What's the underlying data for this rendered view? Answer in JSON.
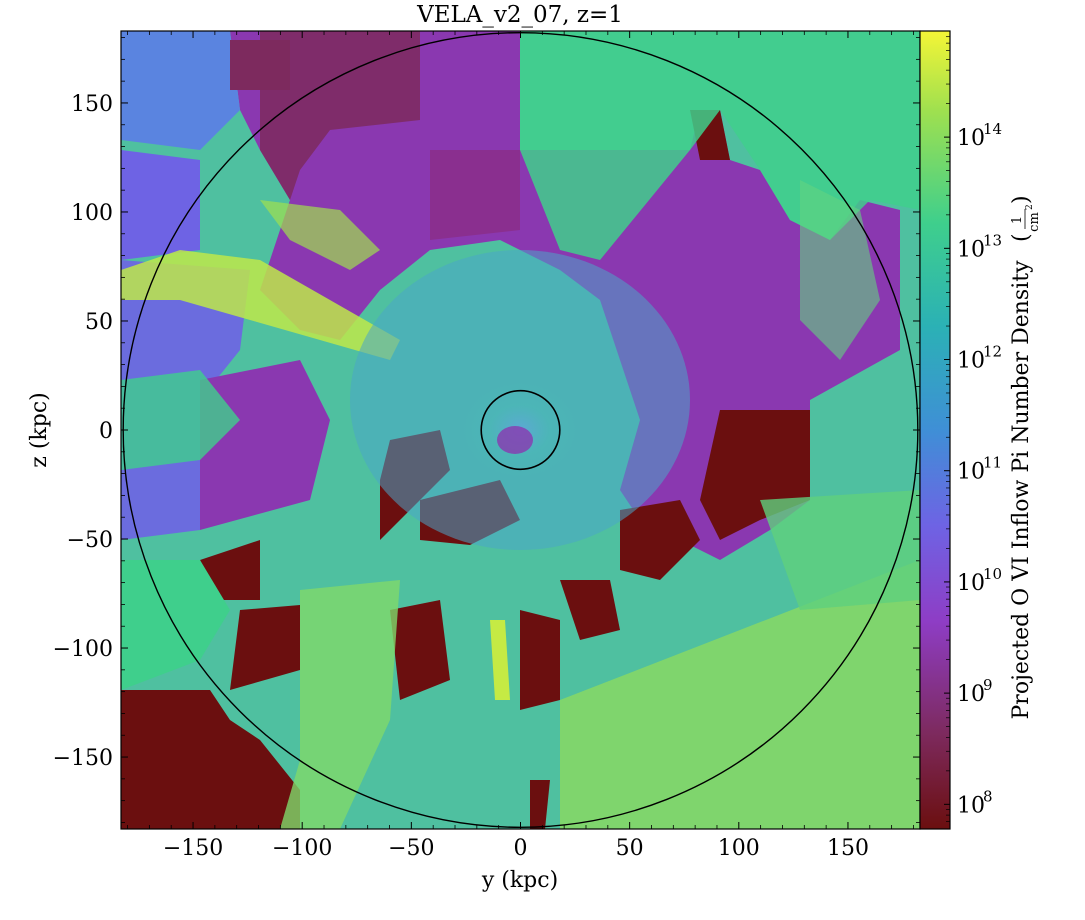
{
  "chart_data": {
    "type": "heatmap",
    "title": "VELA_v2_07, z=1",
    "xlabel": "y  (kpc)",
    "ylabel": "z  (kpc)",
    "xlim": [
      -183,
      183
    ],
    "ylim": [
      -183,
      183
    ],
    "xticks": [
      -150,
      -100,
      -50,
      0,
      50,
      100,
      150
    ],
    "yticks": [
      -150,
      -100,
      -50,
      0,
      50,
      100,
      150
    ],
    "xtick_labels": [
      "−150",
      "−100",
      "−50",
      "0",
      "50",
      "100",
      "150"
    ],
    "ytick_labels": [
      "−150",
      "−100",
      "−50",
      "0",
      "50",
      "100",
      "150"
    ],
    "colorbar": {
      "label": "Projected O VI Inflow Pi Number Density",
      "unit_numerator": "1",
      "unit_denominator": "cm",
      "unit_denominator_exp": "2",
      "scale": "log",
      "range": [
        60000000.0,
        900000000000000.0
      ],
      "tick_bases": [
        "10",
        "10",
        "10",
        "10",
        "10",
        "10",
        "10"
      ],
      "tick_exponents": [
        "8",
        "9",
        "10",
        "11",
        "12",
        "13",
        "14"
      ],
      "tick_values": [
        100000000.0,
        1000000000.0,
        10000000000.0,
        100000000000.0,
        1000000000000.0,
        10000000000000.0,
        100000000000000.0
      ],
      "colormap": [
        "#6b0f0f",
        "#7d2a5e",
        "#8e3dc5",
        "#6e63e4",
        "#3f8fd6",
        "#2bb1b5",
        "#3fcf8c",
        "#9fe04f",
        "#f4f536"
      ]
    },
    "circles": [
      {
        "center": [
          0,
          0
        ],
        "radius_kpc": 182
      },
      {
        "center": [
          0,
          0
        ],
        "radius_kpc": 18
      }
    ],
    "grid": false
  }
}
